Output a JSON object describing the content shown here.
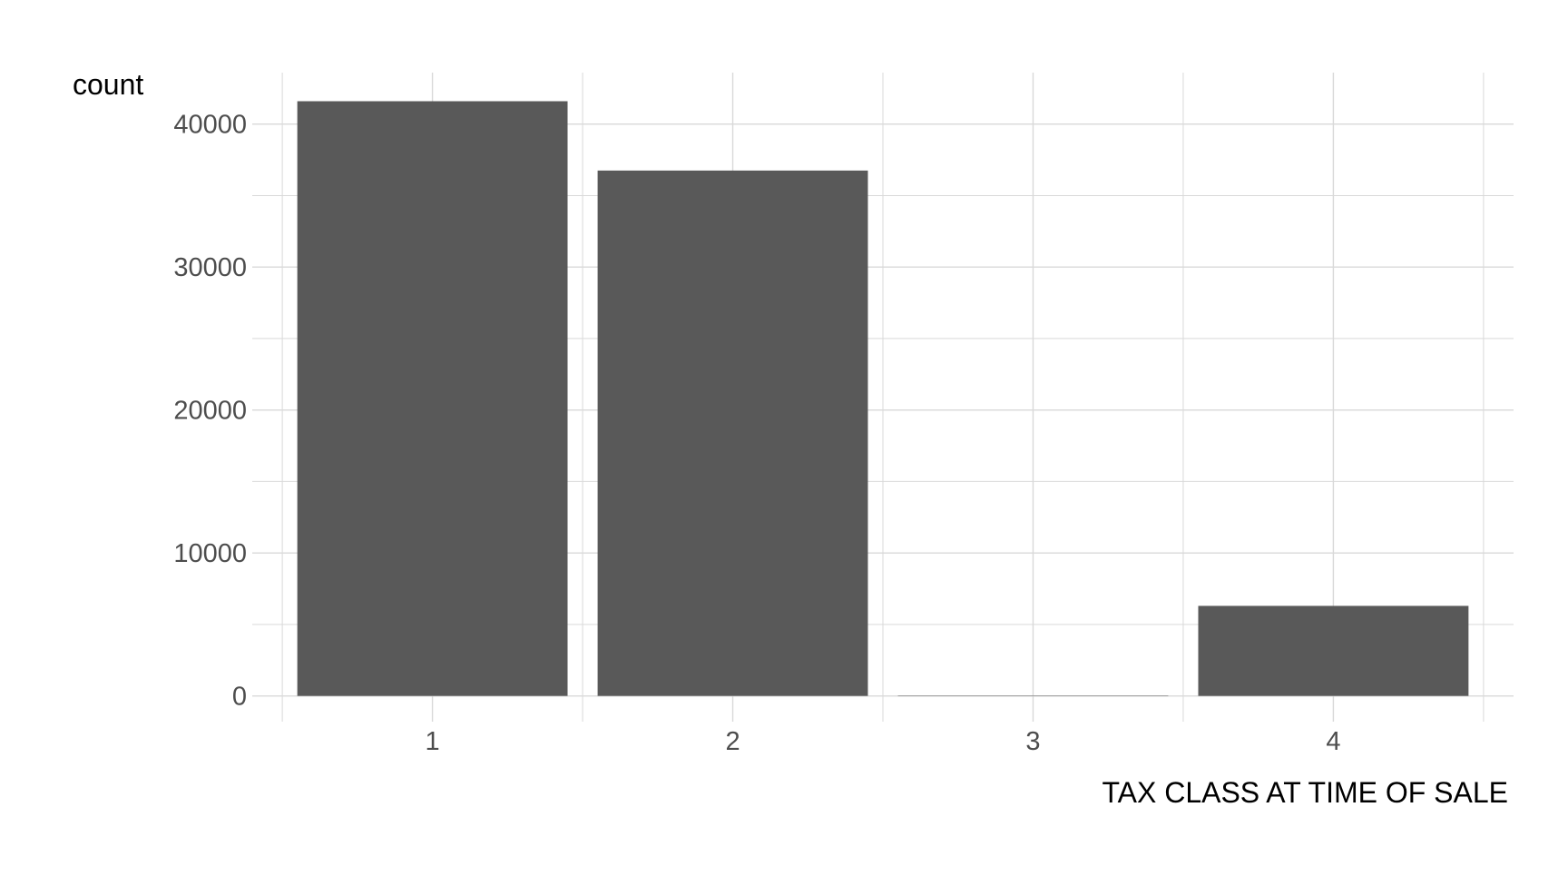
{
  "chart_data": {
    "type": "bar",
    "title": "",
    "xlabel": "TAX CLASS AT TIME OF SALE",
    "ylabel": "count",
    "categories": [
      "1",
      "2",
      "3",
      "4"
    ],
    "values": [
      41600,
      36750,
      30,
      6300
    ],
    "ylim": [
      -1800,
      43600
    ],
    "yticks": [
      0,
      10000,
      20000,
      30000,
      40000
    ],
    "ytick_labels": [
      "0",
      "10000",
      "20000",
      "30000",
      "40000"
    ],
    "yminor": [
      5000,
      15000,
      25000,
      35000
    ],
    "grid": true,
    "legend": "none",
    "colors": {
      "bar": "#595959",
      "grid": "#d9d9d9",
      "tick_text": "#4d4d4d",
      "title_text": "#000000",
      "background": "#ffffff"
    }
  }
}
